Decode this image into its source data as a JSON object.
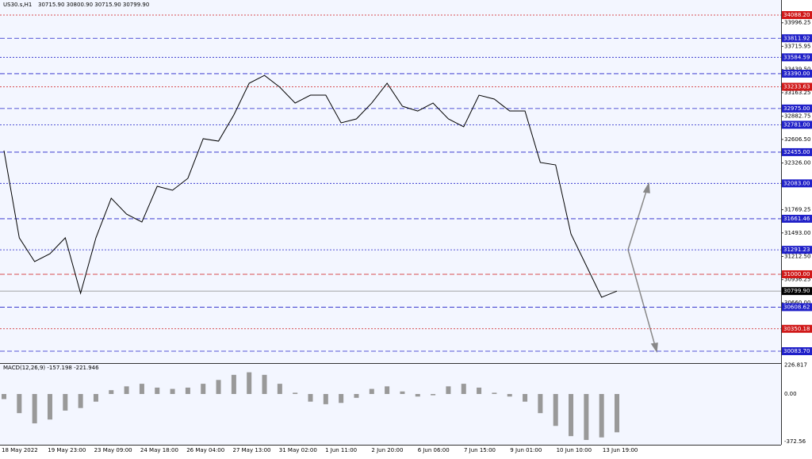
{
  "header": {
    "symbol": "US30.s,H1",
    "ohlc": "30715.90 30800.90 30715.90 30799.90"
  },
  "price_axis": {
    "ticks": [
      {
        "value": 33996.25,
        "label": "33996.25"
      },
      {
        "value": 33715.95,
        "label": "33715.95"
      },
      {
        "value": 33439.5,
        "label": "33439.50"
      },
      {
        "value": 33163.25,
        "label": "33163.25"
      },
      {
        "value": 32882.75,
        "label": "32882.75"
      },
      {
        "value": 32606.5,
        "label": "32606.50"
      },
      {
        "value": 32326.0,
        "label": "32326.00"
      },
      {
        "value": 31769.25,
        "label": "31769.25"
      },
      {
        "value": 31493.0,
        "label": "31493.00"
      },
      {
        "value": 31212.5,
        "label": "31212.50"
      },
      {
        "value": 30936.25,
        "label": "30936.25"
      },
      {
        "value": 30660.0,
        "label": "30660.00"
      }
    ]
  },
  "levels": [
    {
      "value": 34088.2,
      "label": "34088.20",
      "color": "#d01818"
    },
    {
      "value": 33811.92,
      "label": "33811.92",
      "color": "#2020c8"
    },
    {
      "value": 33584.59,
      "label": "33584.59",
      "color": "#2020c8"
    },
    {
      "value": 33390.0,
      "label": "33390.00",
      "color": "#2020c8"
    },
    {
      "value": 33233.63,
      "label": "33233.63",
      "color": "#d01818"
    },
    {
      "value": 32975.0,
      "label": "32975.00",
      "color": "#2020c8"
    },
    {
      "value": 32781.0,
      "label": "32781.00",
      "color": "#2020c8"
    },
    {
      "value": 32455.0,
      "label": "32455.00",
      "color": "#2020c8"
    },
    {
      "value": 32083.0,
      "label": "32083.00",
      "color": "#2020c8"
    },
    {
      "value": 31661.46,
      "label": "31661.46",
      "color": "#2020c8"
    },
    {
      "value": 31291.23,
      "label": "31291.23",
      "color": "#2020c8"
    },
    {
      "value": 31000.0,
      "label": "31000.00",
      "color": "#d01818"
    },
    {
      "value": 30799.9,
      "label": "30799.90",
      "color": "#000000"
    },
    {
      "value": 30608.62,
      "label": "30608.62",
      "color": "#2020c8"
    },
    {
      "value": 30350.18,
      "label": "30350.18",
      "color": "#d01818"
    },
    {
      "value": 30083.7,
      "label": "30083.70",
      "color": "#2020c8"
    }
  ],
  "time_axis": [
    "18 May 2022",
    "19 May 23:00",
    "23 May 09:00",
    "24 May 18:00",
    "26 May 04:00",
    "27 May 13:00",
    "31 May 02:00",
    "1 Jun 11:00",
    "2 Jun 20:00",
    "6 Jun 06:00",
    "7 Jun 15:00",
    "9 Jun 01:00",
    "10 Jun 10:00",
    "13 Jun 19:00"
  ],
  "price": {
    "closes": [
      32473,
      31434,
      31151,
      31245,
      31434,
      30773,
      31434,
      31906,
      31717,
      31623,
      32048,
      32001,
      32143,
      32615,
      32586,
      32898,
      33276,
      33370,
      33229,
      33040,
      33134,
      33134,
      32804,
      32851,
      33040,
      33276,
      33002,
      32945,
      33040,
      32851,
      32757,
      33134,
      33087,
      32945,
      32945,
      32332,
      32303,
      31481,
      31104,
      30726,
      30800
    ]
  },
  "macd": {
    "label": "MACD(12,26,9) -157.198 -221.946",
    "ticks": [
      {
        "value": 226.817,
        "label": "226.817"
      },
      {
        "value": 0,
        "label": "0.00"
      },
      {
        "value": -372.56,
        "label": "-372.56"
      }
    ],
    "histogram": [
      -40,
      -150,
      -230,
      -200,
      -130,
      -110,
      -60,
      30,
      60,
      80,
      50,
      40,
      50,
      80,
      110,
      150,
      170,
      150,
      80,
      10,
      -60,
      -80,
      -70,
      -30,
      40,
      60,
      20,
      -20,
      -10,
      60,
      80,
      50,
      10,
      -20,
      -60,
      -150,
      -250,
      -330,
      -360,
      -340,
      -300
    ]
  }
}
